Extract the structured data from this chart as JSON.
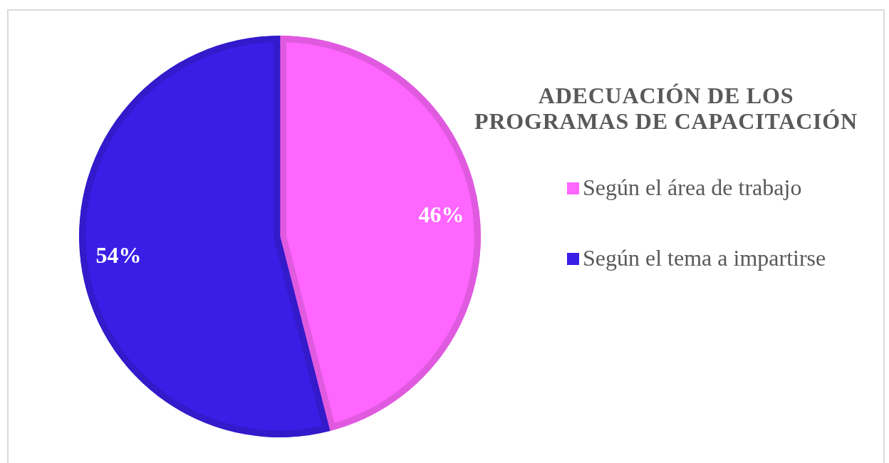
{
  "chart_data": {
    "type": "pie",
    "title": "ADECUACIÓN DE LOS PROGRAMAS DE CAPACITACIÓN",
    "categories": [
      "Según el área de trabajo",
      "Según el tema a impartirse"
    ],
    "values": [
      46,
      54
    ],
    "colors": [
      "#ff66ff",
      "#3a1ee6"
    ],
    "value_labels": [
      "46%",
      "54%"
    ],
    "legend": "right"
  }
}
